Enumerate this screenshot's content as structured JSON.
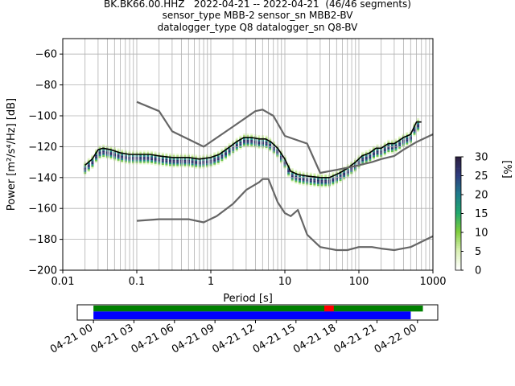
{
  "title_lines": [
    "BK.BK66.00.HHZ   2022-04-21 -- 2022-04-21  (46/46 segments)",
    "sensor_type MBB-2 sensor_sn MBB2-BV",
    "datalogger_type Q8 datalogger_sn Q8-BV"
  ],
  "chart_data": [
    {
      "type": "heatmap",
      "xlabel": "Period [s]",
      "ylabel": "Power [m²/s⁴/Hz] [dB]",
      "xscale": "log",
      "xlim": [
        0.01,
        1000
      ],
      "ylim": [
        -200,
        -50
      ],
      "xticks": [
        {
          "v": 0.01,
          "label": "0.01"
        },
        {
          "v": 0.1,
          "label": "0.1"
        },
        {
          "v": 1,
          "label": "1"
        },
        {
          "v": 10,
          "label": "10"
        },
        {
          "v": 100,
          "label": "100"
        },
        {
          "v": 1000,
          "label": "1000"
        }
      ],
      "yticks": [
        {
          "v": -60,
          "label": "−60"
        },
        {
          "v": -80,
          "label": "−80"
        },
        {
          "v": -100,
          "label": "−100"
        },
        {
          "v": -120,
          "label": "−120"
        },
        {
          "v": -140,
          "label": "−140"
        },
        {
          "v": -160,
          "label": "−160"
        },
        {
          "v": -180,
          "label": "−180"
        },
        {
          "v": -200,
          "label": "−200"
        }
      ],
      "grid": true,
      "colorbar": {
        "label": "[%]",
        "range": [
          0,
          30
        ],
        "ticks": [
          0,
          5,
          10,
          15,
          20,
          25,
          30
        ],
        "colormap": [
          "#ffffff",
          "#d9f0b3",
          "#7fcd3c",
          "#21a86e",
          "#1f7a8c",
          "#2f3b7d",
          "#2d1d3b"
        ]
      },
      "series": [
        {
          "style": "black",
          "x": [
            0.02,
            0.025,
            0.03,
            0.035,
            0.045,
            0.06,
            0.08,
            0.1,
            0.15,
            0.2,
            0.3,
            0.5,
            0.7,
            1,
            1.3,
            1.7,
            2.2,
            2.8,
            3.5,
            4.5,
            5.5,
            6.5,
            8,
            10,
            12,
            15,
            20,
            30,
            40,
            55,
            70,
            90,
            110,
            140,
            170,
            200,
            250,
            300,
            350,
            400,
            450,
            500,
            600,
            700
          ],
          "y": [
            -132,
            -128,
            -122,
            -121,
            -122,
            -124,
            -125,
            -125,
            -125,
            -126,
            -127,
            -127,
            -128,
            -127,
            -125,
            -121,
            -117,
            -114,
            -114,
            -115,
            -115,
            -117,
            -121,
            -128,
            -136,
            -138,
            -139,
            -140,
            -140,
            -137,
            -134,
            -130,
            -126,
            -124,
            -121,
            -121,
            -118,
            -118,
            -116,
            -114,
            -113,
            -112,
            -104,
            -104
          ]
        },
        {
          "style": "gray",
          "x": [
            0.1,
            0.2,
            0.3,
            0.8,
            2,
            4,
            5,
            7,
            10,
            20,
            30,
            50,
            80,
            100,
            150,
            200,
            300,
            400,
            600,
            1000
          ],
          "y": [
            -91,
            -97,
            -110,
            -120,
            -107,
            -97,
            -96,
            -100,
            -113,
            -118,
            -137,
            -135,
            -133,
            -132,
            -130,
            -128,
            -126,
            -122,
            -117,
            -112
          ]
        },
        {
          "style": "gray",
          "x": [
            0.1,
            0.2,
            0.5,
            0.8,
            1.2,
            2,
            3,
            4.5,
            5,
            6,
            8,
            10,
            12,
            15,
            20,
            30,
            50,
            70,
            100,
            150,
            200,
            300,
            500,
            1000
          ],
          "y": [
            -168,
            -167,
            -167,
            -169,
            -165,
            -157,
            -148,
            -143,
            -141,
            -141,
            -156,
            -163,
            -165,
            -161,
            -177,
            -185,
            -187,
            -187,
            -185,
            -185,
            -186,
            -187,
            -185,
            -178
          ]
        }
      ]
    },
    {
      "type": "timeline",
      "xticks": [
        "04-21 00",
        "04-21 03",
        "04-21 06",
        "04-21 09",
        "04-21 12",
        "04-21 15",
        "04-21 18",
        "04-21 21",
        "04-22 00"
      ],
      "xrange_hours": [
        -1.2,
        25.5
      ],
      "data_coverage": {
        "start_h": 0,
        "end_h": 24.4,
        "gaps": [
          {
            "start_h": 17.1,
            "end_h": 17.8
          }
        ]
      },
      "psd_coverage": {
        "start_h": 0,
        "end_h": 23.5
      },
      "colors": {
        "data": "#008000",
        "gap": "#ff0000",
        "psd": "#0000ff"
      }
    }
  ]
}
